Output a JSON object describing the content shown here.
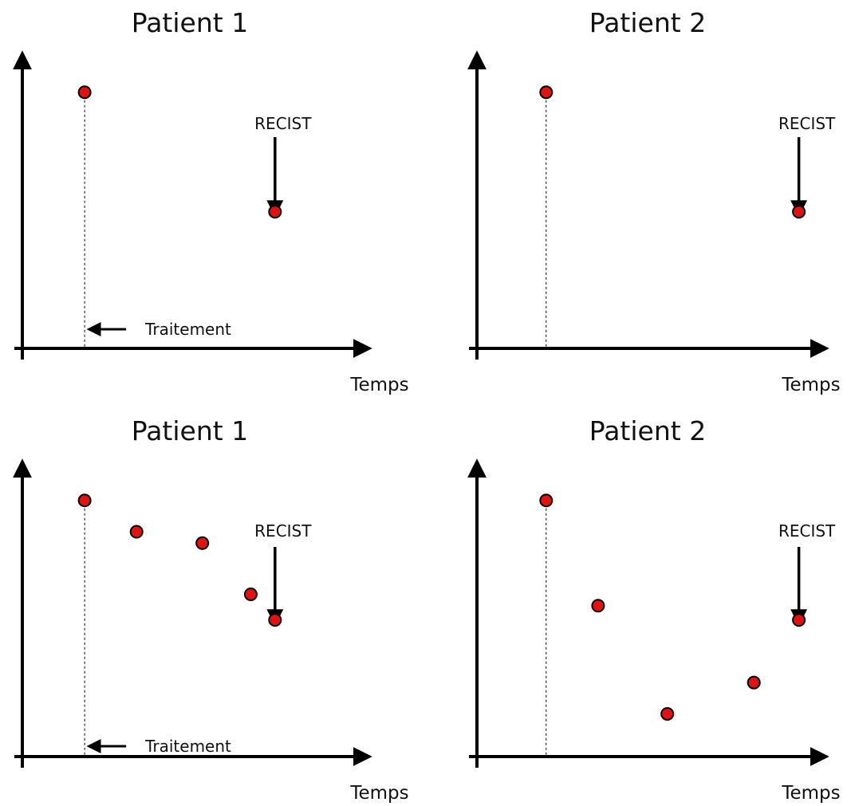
{
  "colors": {
    "marker_fill": "#e01212",
    "marker_stroke": "#000000",
    "axis": "#000000"
  },
  "chart_data": [
    {
      "type": "scatter",
      "title": "Patient 1",
      "xlabel": "Temps",
      "ylabel": "",
      "xlim": [
        0,
        10
      ],
      "ylim": [
        0,
        10
      ],
      "grid": false,
      "treatment_x": 1.8,
      "treatment_label": "Traitement",
      "recist_x": 7.3,
      "recist_label": "RECIST",
      "points": [
        {
          "x": 1.8,
          "y": 9.0
        },
        {
          "x": 7.3,
          "y": 4.8
        }
      ]
    },
    {
      "type": "scatter",
      "title": "Patient 2",
      "xlabel": "Temps",
      "ylabel": "",
      "xlim": [
        0,
        10
      ],
      "ylim": [
        0,
        10
      ],
      "grid": false,
      "treatment_x": 2.0,
      "treatment_label": "",
      "recist_x": 9.3,
      "recist_label": "RECIST",
      "points": [
        {
          "x": 2.0,
          "y": 9.0
        },
        {
          "x": 9.3,
          "y": 4.8
        }
      ]
    },
    {
      "type": "scatter",
      "title": "Patient 1",
      "xlabel": "Temps",
      "ylabel": "",
      "xlim": [
        0,
        10
      ],
      "ylim": [
        0,
        10
      ],
      "grid": false,
      "treatment_x": 1.8,
      "treatment_label": "Traitement",
      "recist_x": 7.3,
      "recist_label": "RECIST",
      "points": [
        {
          "x": 1.8,
          "y": 9.0
        },
        {
          "x": 3.3,
          "y": 7.9
        },
        {
          "x": 5.2,
          "y": 7.5
        },
        {
          "x": 6.6,
          "y": 5.7
        },
        {
          "x": 7.3,
          "y": 4.8
        }
      ]
    },
    {
      "type": "scatter",
      "title": "Patient 2",
      "xlabel": "Temps",
      "ylabel": "",
      "xlim": [
        0,
        10
      ],
      "ylim": [
        0,
        10
      ],
      "grid": false,
      "treatment_x": 2.0,
      "treatment_label": "",
      "recist_x": 9.3,
      "recist_label": "RECIST",
      "points": [
        {
          "x": 2.0,
          "y": 9.0
        },
        {
          "x": 3.5,
          "y": 5.3
        },
        {
          "x": 5.5,
          "y": 1.5
        },
        {
          "x": 8.0,
          "y": 2.6
        },
        {
          "x": 9.3,
          "y": 4.8
        }
      ]
    }
  ]
}
